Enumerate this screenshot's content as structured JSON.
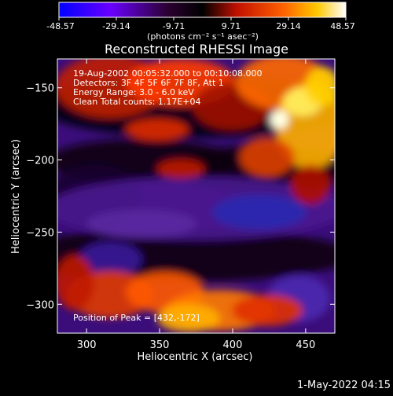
{
  "colorbar": {
    "ticks": [
      "-48.57",
      "-29.14",
      "-9.71",
      "9.71",
      "29.14",
      "48.57"
    ],
    "min": -48.57,
    "max": 48.57,
    "units_label": "(photons cm⁻² s⁻¹ asec⁻²)"
  },
  "chart_data": {
    "type": "heatmap",
    "title": "Reconstructed RHESSI Image",
    "xlabel": "Heliocentric X (arcsec)",
    "ylabel": "Heliocentric Y (arcsec)",
    "xlim": [
      280,
      470
    ],
    "ylim": [
      -320,
      -130
    ],
    "xticks": [
      300,
      350,
      400,
      450
    ],
    "yticks": [
      -150,
      -200,
      -250,
      -300
    ],
    "annotations": [
      "19-Aug-2002 00:05:32.000 to 00:10:08.000",
      "Detectors: 3F 4F 5F 6F 7F 8F, Att 1",
      "Energy Range: 3.0 - 6.0 keV",
      "Clean     Total counts: 1.17E+04"
    ],
    "peak_label": "Position of Peak = [432,-172]",
    "peak": [
      432,
      -172
    ],
    "colormap": "blue-purple-black-red-yellow-white"
  },
  "footer": {
    "timestamp": "1-May-2022 04:15"
  }
}
